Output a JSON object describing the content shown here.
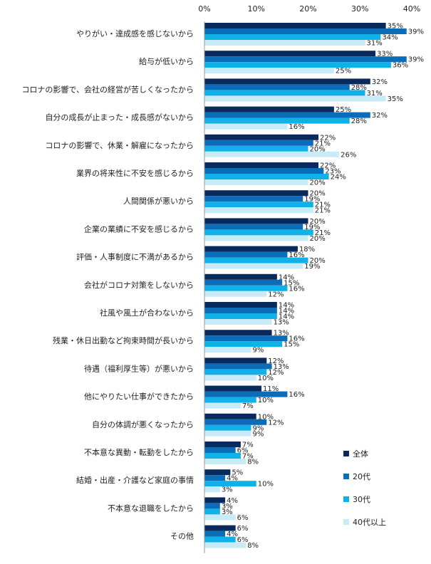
{
  "chart_data": {
    "type": "bar",
    "orientation": "horizontal",
    "title": "",
    "xlim": [
      0,
      40
    ],
    "x_ticks": [
      "0%",
      "10%",
      "20%",
      "30%",
      "40%"
    ],
    "x_tick_values": [
      0,
      10,
      20,
      30,
      40
    ],
    "value_suffix": "%",
    "gridlines": false,
    "legend_position": "bottom-right",
    "categories": [
      "やりがい・達成感を感じないから",
      "給与が低いから",
      "コロナの影響で、会社の経営が苦しくなったから",
      "自分の成長が止まった・成長感がないから",
      "コロナの影響で、休業・解雇になったから",
      "業界の将来性に不安を感じるから",
      "人間関係が悪いから",
      "企業の業績に不安を感じるから",
      "評価・人事制度に不満があるから",
      "会社がコロナ対策をしないから",
      "社風や風土が合わないから",
      "残業・休日出勤など拘束時間が長いから",
      "待遇（福利厚生等）が悪いから",
      "他にやりたい仕事ができたから",
      "自分の体調が悪くなったから",
      "不本意な異動・転勤をしたから",
      "結婚・出産・介護など家庭の事情",
      "不本意な退職をしたから",
      "その他"
    ],
    "series": [
      {
        "name": "全体",
        "color": "#0a2a5e",
        "values": [
          35,
          33,
          32,
          25,
          22,
          22,
          20,
          20,
          18,
          14,
          14,
          13,
          12,
          11,
          10,
          7,
          5,
          4,
          6
        ]
      },
      {
        "name": "20代",
        "color": "#0b6cb8",
        "values": [
          39,
          39,
          28,
          32,
          21,
          23,
          19,
          19,
          16,
          15,
          14,
          16,
          13,
          16,
          12,
          6,
          4,
          3,
          4
        ]
      },
      {
        "name": "30代",
        "color": "#10b0e8",
        "values": [
          34,
          36,
          31,
          28,
          20,
          24,
          21,
          21,
          20,
          16,
          14,
          15,
          12,
          10,
          9,
          7,
          10,
          3,
          6
        ]
      },
      {
        "name": "40代以上",
        "color": "#c9ebf8",
        "values": [
          31,
          25,
          35,
          16,
          26,
          20,
          21,
          20,
          19,
          12,
          13,
          9,
          10,
          7,
          9,
          8,
          3,
          6,
          8
        ]
      }
    ]
  }
}
